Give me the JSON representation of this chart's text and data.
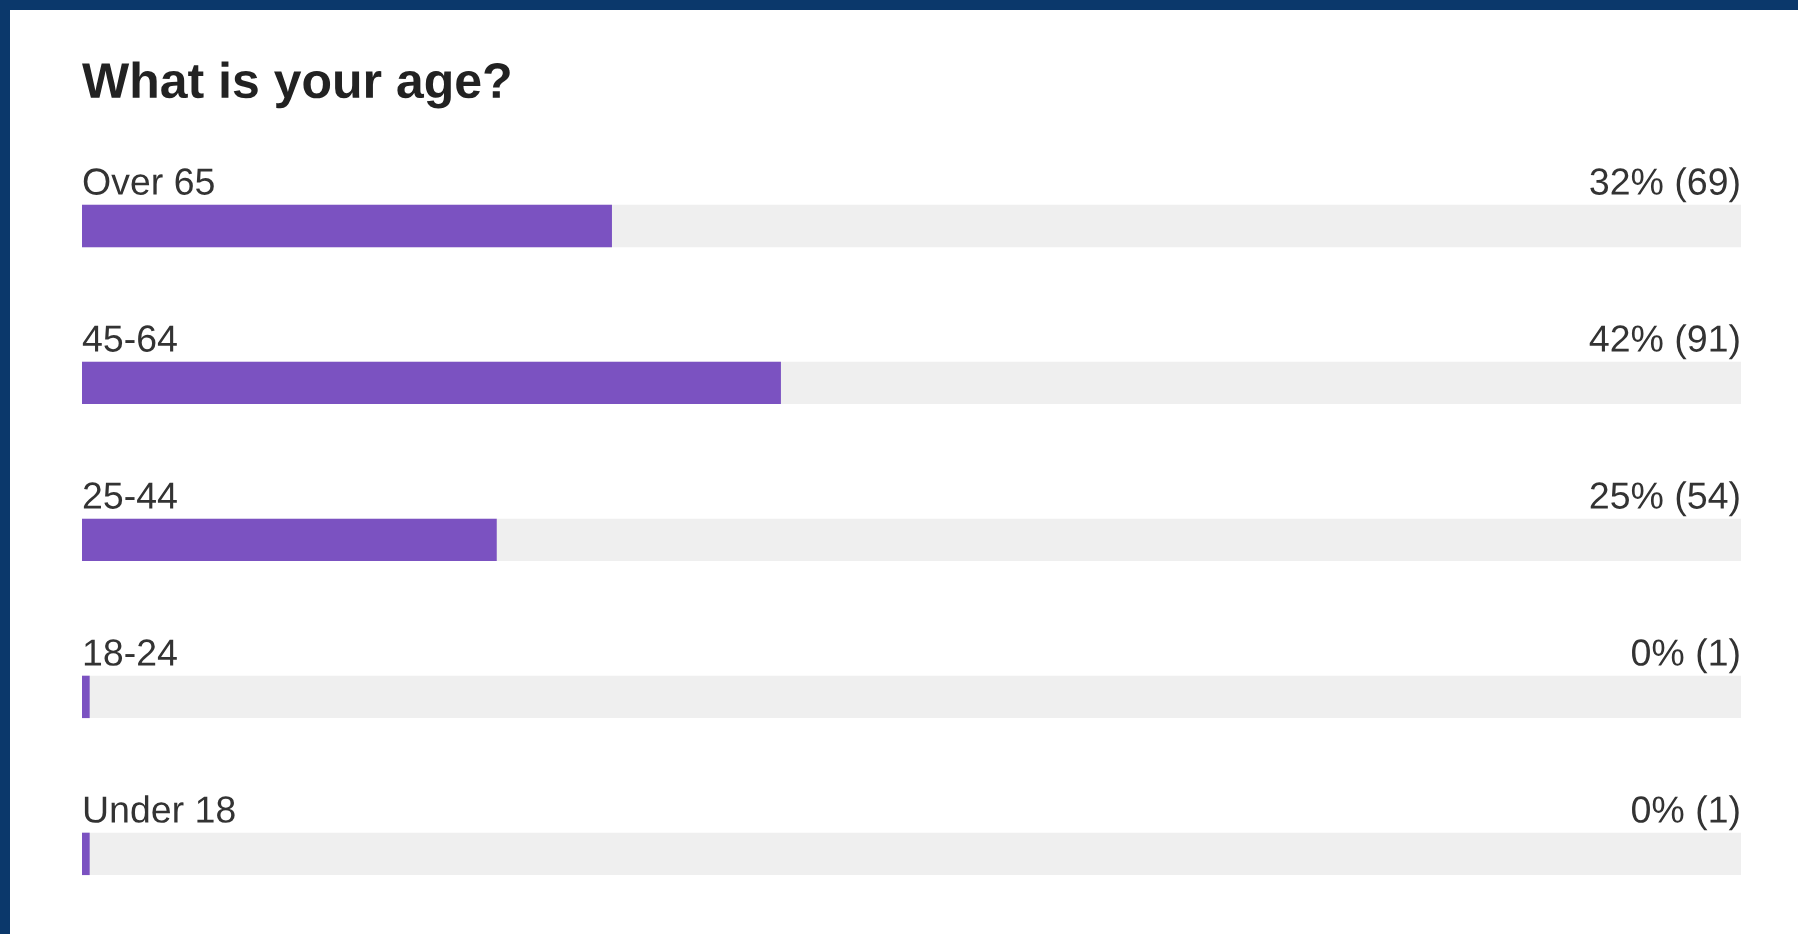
{
  "chart_data": {
    "type": "bar",
    "orientation": "horizontal",
    "title": "What is your age?",
    "categories": [
      "Over 65",
      "45-64",
      "25-44",
      "18-24",
      "Under 18"
    ],
    "series": [
      {
        "color": "#7b52c1",
        "values": [
          69,
          91,
          54,
          1,
          1
        ],
        "value_labels": [
          "32% (69)",
          "42% (91)",
          "25% (54)",
          "0% (1)",
          "0% (1)"
        ]
      }
    ]
  }
}
